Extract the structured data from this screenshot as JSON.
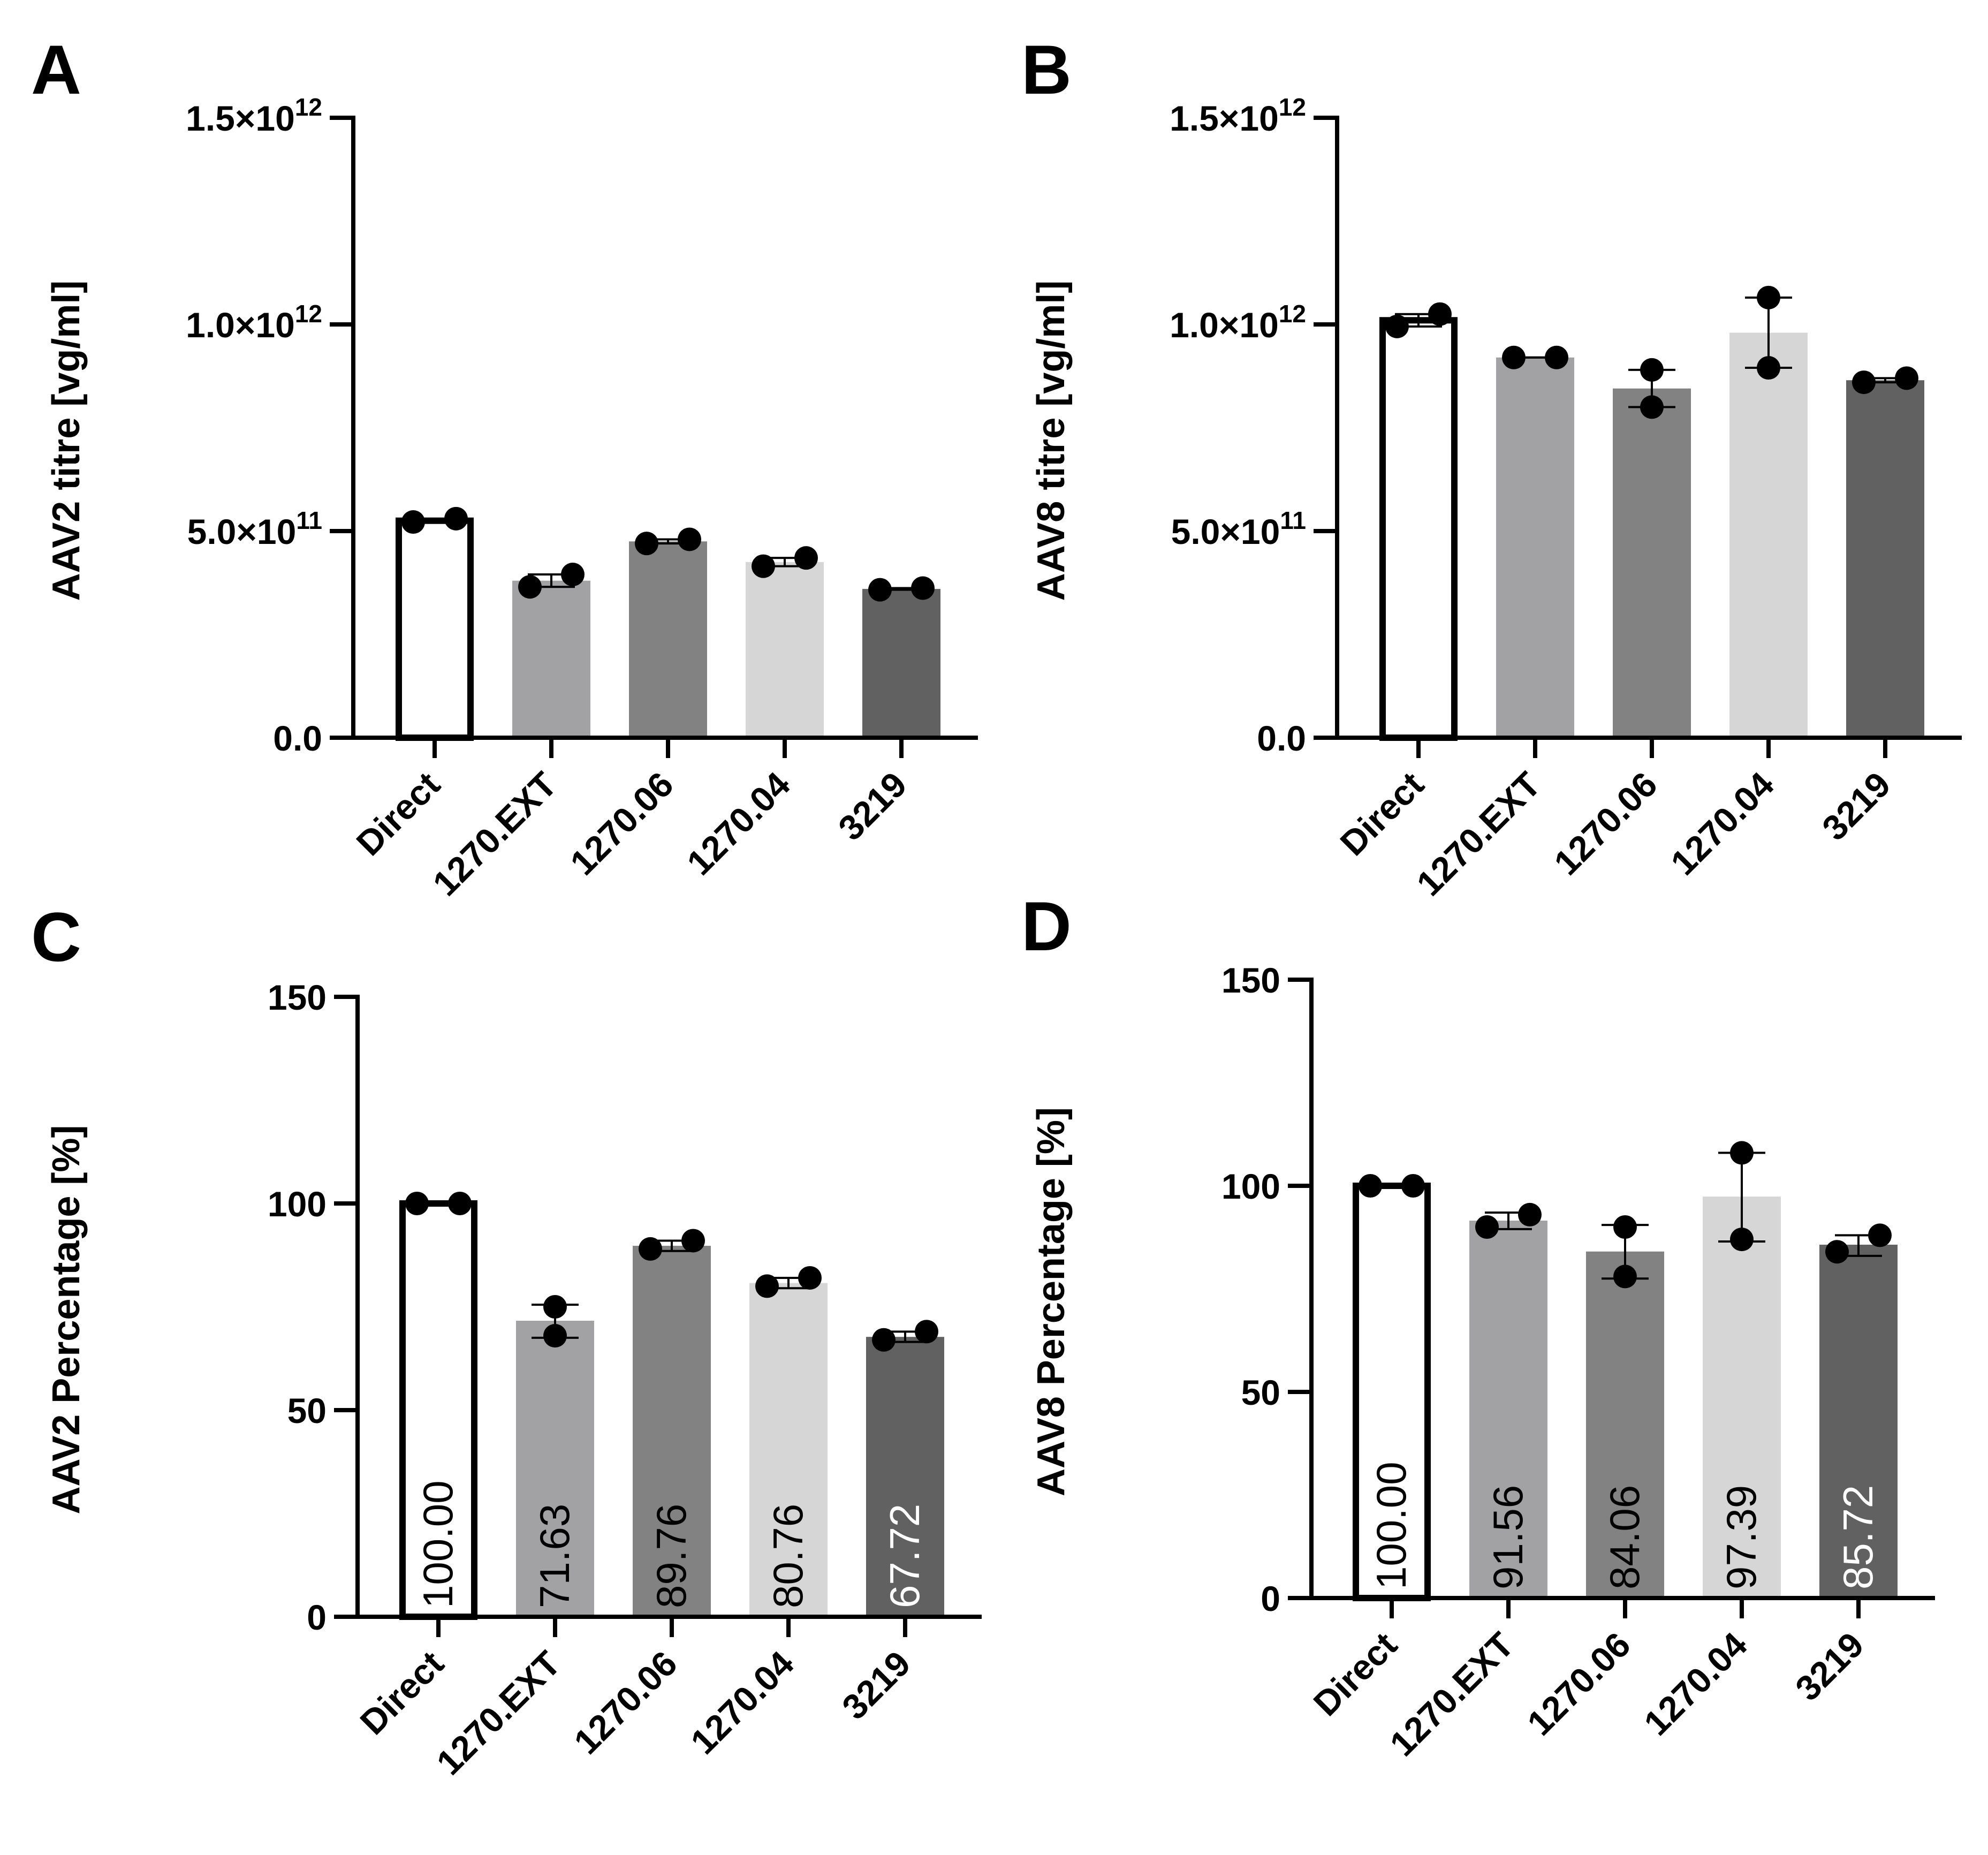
{
  "chart_data": [
    {
      "panel": "A",
      "type": "bar",
      "ylabel": "AAV2 titre [vg/ml]",
      "ylim": [
        0,
        1500000000000.0
      ],
      "yticks": [
        {
          "value": 0,
          "mant": "0.0",
          "exp": ""
        },
        {
          "value": 500000000000.0,
          "mant": "5.0×10",
          "exp": "11"
        },
        {
          "value": 1000000000000.0,
          "mant": "1.0×10",
          "exp": "12"
        },
        {
          "value": 1500000000000.0,
          "mant": "1.5×10",
          "exp": "12"
        }
      ],
      "categories": [
        "Direct",
        "1270.EXT",
        "1270.06",
        "1270.04",
        "3219"
      ],
      "fills": [
        "#ffffff",
        "#a2a2a5",
        "#828282",
        "#d6d6d6",
        "#616161"
      ],
      "values": [
        525000000000.0,
        380000000000.0,
        475000000000.0,
        425000000000.0,
        360000000000.0
      ],
      "points": [
        [
          522000000000.0,
          530000000000.0
        ],
        [
          365000000000.0,
          395000000000.0
        ],
        [
          470000000000.0,
          480000000000.0
        ],
        [
          415000000000.0,
          435000000000.0
        ],
        [
          358000000000.0,
          362000000000.0
        ]
      ],
      "errors": [
        [
          522000000000.0,
          530000000000.0
        ],
        [
          365000000000.0,
          395000000000.0
        ],
        [
          470000000000.0,
          480000000000.0
        ],
        [
          415000000000.0,
          435000000000.0
        ],
        [
          358000000000.0,
          362000000000.0
        ]
      ]
    },
    {
      "panel": "B",
      "type": "bar",
      "ylabel": "AAV8 titre [vg/ml]",
      "ylim": [
        0,
        1500000000000.0
      ],
      "yticks": [
        {
          "value": 0,
          "mant": "0.0",
          "exp": ""
        },
        {
          "value": 500000000000.0,
          "mant": "5.0×10",
          "exp": "11"
        },
        {
          "value": 1000000000000.0,
          "mant": "1.0×10",
          "exp": "12"
        },
        {
          "value": 1500000000000.0,
          "mant": "1.5×10",
          "exp": "12"
        }
      ],
      "categories": [
        "Direct",
        "1270.EXT",
        "1270.06",
        "1270.04",
        "3219"
      ],
      "fills": [
        "#ffffff",
        "#a2a2a5",
        "#828282",
        "#d6d6d6",
        "#616161"
      ],
      "values": [
        1010000000000.0,
        920000000000.0,
        845000000000.0,
        980000000000.0,
        865000000000.0
      ],
      "points": [
        [
          995000000000.0,
          1025000000000.0
        ],
        [
          920000000000.0,
          920000000000.0
        ],
        [
          800000000000.0,
          890000000000.0
        ],
        [
          895000000000.0,
          1065000000000.0
        ],
        [
          860000000000.0,
          870000000000.0
        ]
      ],
      "errors": [
        [
          995000000000.0,
          1025000000000.0
        ],
        [
          920000000000.0,
          920000000000.0
        ],
        [
          800000000000.0,
          890000000000.0
        ],
        [
          895000000000.0,
          1065000000000.0
        ],
        [
          860000000000.0,
          870000000000.0
        ]
      ]
    },
    {
      "panel": "C",
      "type": "bar",
      "ylabel": "AAV2 Percentage [%]",
      "ylim": [
        0,
        150
      ],
      "yticks": [
        {
          "value": 0,
          "mant": "0",
          "exp": ""
        },
        {
          "value": 50,
          "mant": "50",
          "exp": ""
        },
        {
          "value": 100,
          "mant": "100",
          "exp": ""
        },
        {
          "value": 150,
          "mant": "150",
          "exp": ""
        }
      ],
      "categories": [
        "Direct",
        "1270.EXT",
        "1270.06",
        "1270.04",
        "3219"
      ],
      "fills": [
        "#ffffff",
        "#a2a2a5",
        "#828282",
        "#d6d6d6",
        "#616161"
      ],
      "values": [
        100.0,
        71.63,
        89.76,
        80.76,
        67.72
      ],
      "value_labels": [
        "100.00",
        "71.63",
        "89.76",
        "80.76",
        "67.72"
      ],
      "label_colors": [
        "#000000",
        "#000000",
        "#000000",
        "#000000",
        "#ffffff"
      ],
      "points": [
        [
          100,
          100
        ],
        [
          68,
          75
        ],
        [
          89,
          91
        ],
        [
          80,
          82
        ],
        [
          67,
          69
        ]
      ],
      "errors": [
        [
          100,
          100
        ],
        [
          67.5,
          75.5
        ],
        [
          88.5,
          91
        ],
        [
          79.5,
          82
        ],
        [
          66.5,
          69
        ]
      ]
    },
    {
      "panel": "D",
      "type": "bar",
      "ylabel": "AAV8 Percentage [%]",
      "ylim": [
        0,
        150
      ],
      "yticks": [
        {
          "value": 0,
          "mant": "0",
          "exp": ""
        },
        {
          "value": 50,
          "mant": "50",
          "exp": ""
        },
        {
          "value": 100,
          "mant": "100",
          "exp": ""
        },
        {
          "value": 150,
          "mant": "150",
          "exp": ""
        }
      ],
      "categories": [
        "Direct",
        "1270.EXT",
        "1270.06",
        "1270.04",
        "3219"
      ],
      "fills": [
        "#ffffff",
        "#a2a2a5",
        "#828282",
        "#d6d6d6",
        "#616161"
      ],
      "values": [
        100.0,
        91.56,
        84.06,
        97.39,
        85.72
      ],
      "value_labels": [
        "100.00",
        "91.56",
        "84.06",
        "97.39",
        "85.72"
      ],
      "label_colors": [
        "#000000",
        "#000000",
        "#000000",
        "#000000",
        "#ffffff"
      ],
      "points": [
        [
          100,
          100
        ],
        [
          90,
          93
        ],
        [
          78,
          90
        ],
        [
          87,
          108
        ],
        [
          84,
          88
        ]
      ],
      "errors": [
        [
          100,
          100
        ],
        [
          89.5,
          93.5
        ],
        [
          77.5,
          90.5
        ],
        [
          86.5,
          108
        ],
        [
          83,
          88
        ]
      ]
    }
  ]
}
